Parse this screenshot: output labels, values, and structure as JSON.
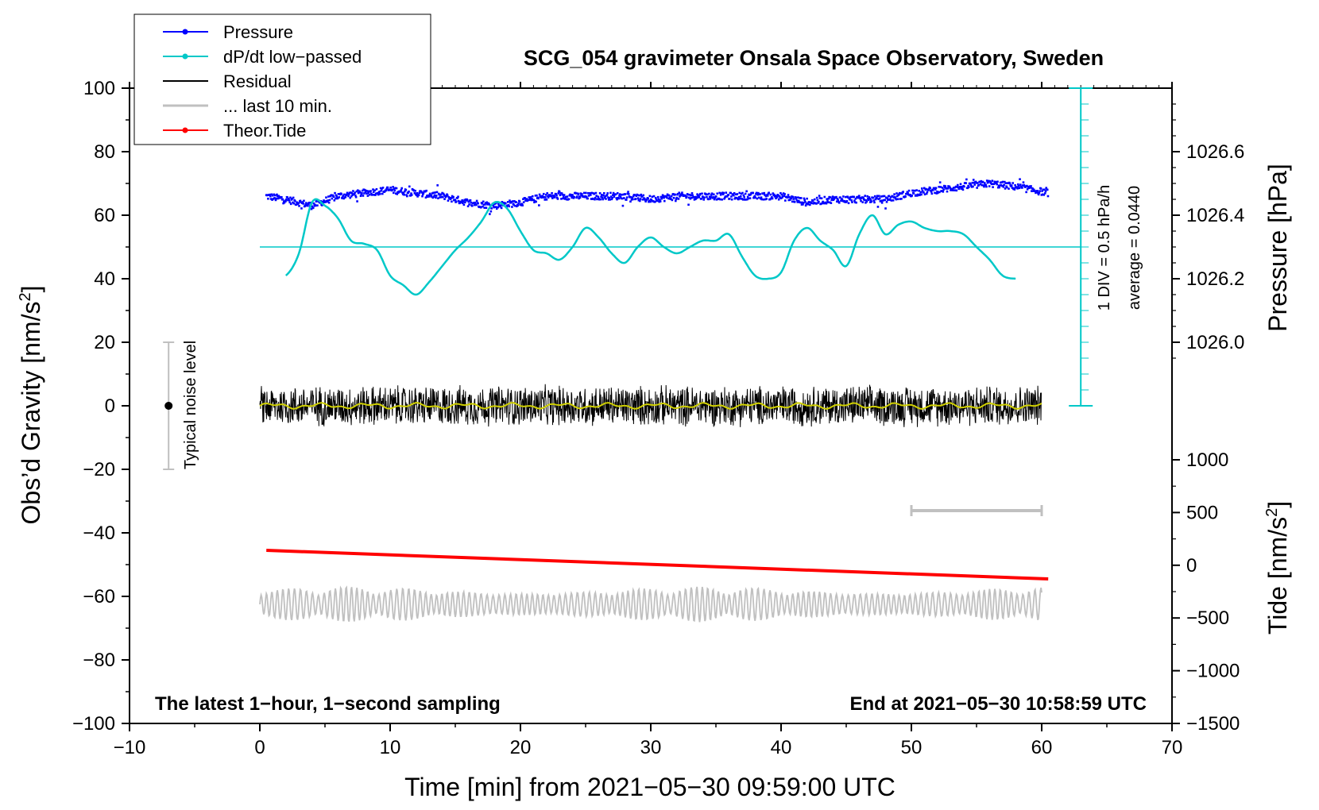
{
  "chart_data": {
    "type": "line",
    "title": "SCG_054 gravimeter Onsala Space Observatory, Sweden",
    "xlabel": "Time [min] from 2021−05−30 09:59:00 UTC",
    "ylabel_main": "Obs’d Gravity [nm/s",
    "ylabel_main_sup": "2",
    "ylabel_main_tail": "]",
    "ylabel_pressure": "Pressure [hPa]",
    "ylabel_tide": "Tide [nm/s",
    "ylabel_tide_sup": "2",
    "ylabel_tide_tail": "]",
    "xlim": [
      -10,
      70
    ],
    "ylim": [
      -100,
      100
    ],
    "x_ticks": [
      "−10",
      "0",
      "10",
      "20",
      "30",
      "40",
      "50",
      "60",
      "70"
    ],
    "x_tick_values": [
      -10,
      0,
      10,
      20,
      30,
      40,
      50,
      60,
      70
    ],
    "y_ticks": [
      "100",
      "80",
      "60",
      "40",
      "20",
      "0",
      "−20",
      "−40",
      "−60",
      "−80",
      "−100"
    ],
    "y_tick_values": [
      100,
      80,
      60,
      40,
      20,
      0,
      -20,
      -40,
      -60,
      -80,
      -100
    ],
    "pressure_axis": {
      "ticks": [
        "1026.6",
        "1026.4",
        "1026.2",
        "1026.0"
      ],
      "values": [
        1026.6,
        1026.4,
        1026.2,
        1026.0
      ],
      "map_gravity": [
        [
          1026.6,
          80
        ],
        [
          1026.0,
          20
        ]
      ]
    },
    "tide_axis": {
      "ticks": [
        "1000",
        "500",
        "0",
        "−500",
        "−1000",
        "−1500"
      ],
      "values": [
        1000,
        500,
        0,
        -500,
        -1000,
        -1500
      ],
      "map_gravity": [
        [
          1000,
          -17
        ],
        [
          -1500,
          -100
        ]
      ]
    },
    "legend": [
      {
        "label": "Pressure",
        "color": "#0000ff",
        "marker": true
      },
      {
        "label": "dP/dt low−passed",
        "color": "#00c8c8",
        "marker": true
      },
      {
        "label": "Residual",
        "color": "#000000",
        "marker": false
      },
      {
        "label": "... last 10 min.",
        "color": "#c0c0c0",
        "marker": false
      },
      {
        "label": "Theor.Tide",
        "color": "#ff0000",
        "marker": true
      }
    ],
    "legend_position": "top-left",
    "series": [
      {
        "name": "Pressure",
        "color": "#0000ff",
        "x": [
          0.5,
          2,
          4,
          6,
          8,
          10,
          12,
          14,
          16,
          18,
          20,
          22,
          24,
          26,
          28,
          30,
          32,
          34,
          36,
          38,
          40,
          42,
          44,
          46,
          48,
          50,
          52,
          54,
          56,
          58,
          60.5
        ],
        "values": [
          66,
          65,
          63,
          66,
          67,
          68,
          67,
          66,
          64,
          63,
          64,
          66,
          66,
          66,
          66,
          65,
          66,
          66,
          66,
          66,
          66,
          64,
          65,
          65,
          65,
          67,
          68,
          69,
          70,
          69,
          67
        ]
      },
      {
        "name": "dP/dt low−passed",
        "color": "#00c8c8",
        "x": [
          2,
          3,
          4,
          5,
          6,
          7,
          8,
          9,
          10,
          11,
          12,
          13,
          14,
          15,
          16,
          17,
          18,
          19,
          20,
          21,
          22,
          23,
          24,
          25,
          26,
          27,
          28,
          29,
          30,
          31,
          32,
          33,
          34,
          35,
          36,
          37,
          38,
          39,
          40,
          41,
          42,
          43,
          44,
          45,
          46,
          47,
          48,
          49,
          50,
          51,
          52,
          53,
          54,
          55,
          56,
          57,
          58
        ],
        "values": [
          41,
          48,
          64,
          63,
          59,
          52,
          51,
          49,
          41,
          38,
          35,
          39,
          44,
          49,
          53,
          58,
          64,
          62,
          55,
          49,
          48,
          46,
          50,
          56,
          53,
          48,
          45,
          50,
          53,
          50,
          48,
          50,
          52,
          52,
          54,
          47,
          41,
          40,
          42,
          52,
          56,
          52,
          49,
          44,
          54,
          60,
          54,
          57,
          58,
          56,
          55,
          55,
          54,
          50,
          46,
          41,
          40
        ]
      },
      {
        "name": "dP/dt average line",
        "color": "#00c8c8",
        "values": [
          50
        ]
      },
      {
        "name": "Residual",
        "color": "#000000",
        "x_range": [
          0,
          60
        ],
        "center": 0,
        "amplitude": 10
      },
      {
        "name": "Residual smoothed",
        "color": "#d0d000",
        "x_range": [
          0,
          60
        ],
        "center": 0
      },
      {
        "name": "... last 10 min.",
        "color": "#c0c0c0",
        "x_range": [
          0,
          60
        ],
        "center": -61,
        "amplitude": 8
      },
      {
        "name": "Theor.Tide",
        "color": "#ff0000",
        "x": [
          0.5,
          60.5
        ],
        "values": [
          -45.5,
          -54.5
        ]
      }
    ],
    "scale_bar_last10": {
      "x": [
        50,
        60
      ],
      "y": -33
    },
    "noise_bar": {
      "x": -7,
      "y_range": [
        -20,
        20
      ],
      "label": "Typical noise level"
    },
    "dpdt_scale": {
      "x": 63,
      "y_range": [
        0,
        100
      ],
      "label1": "1 DIV = 0.5 hPa/h",
      "label2": "average = 0.0440"
    },
    "annotations": {
      "bottom_left": "The latest 1−hour, 1−second sampling",
      "bottom_right": "End at 2021−05−30 10:58:59 UTC"
    }
  }
}
